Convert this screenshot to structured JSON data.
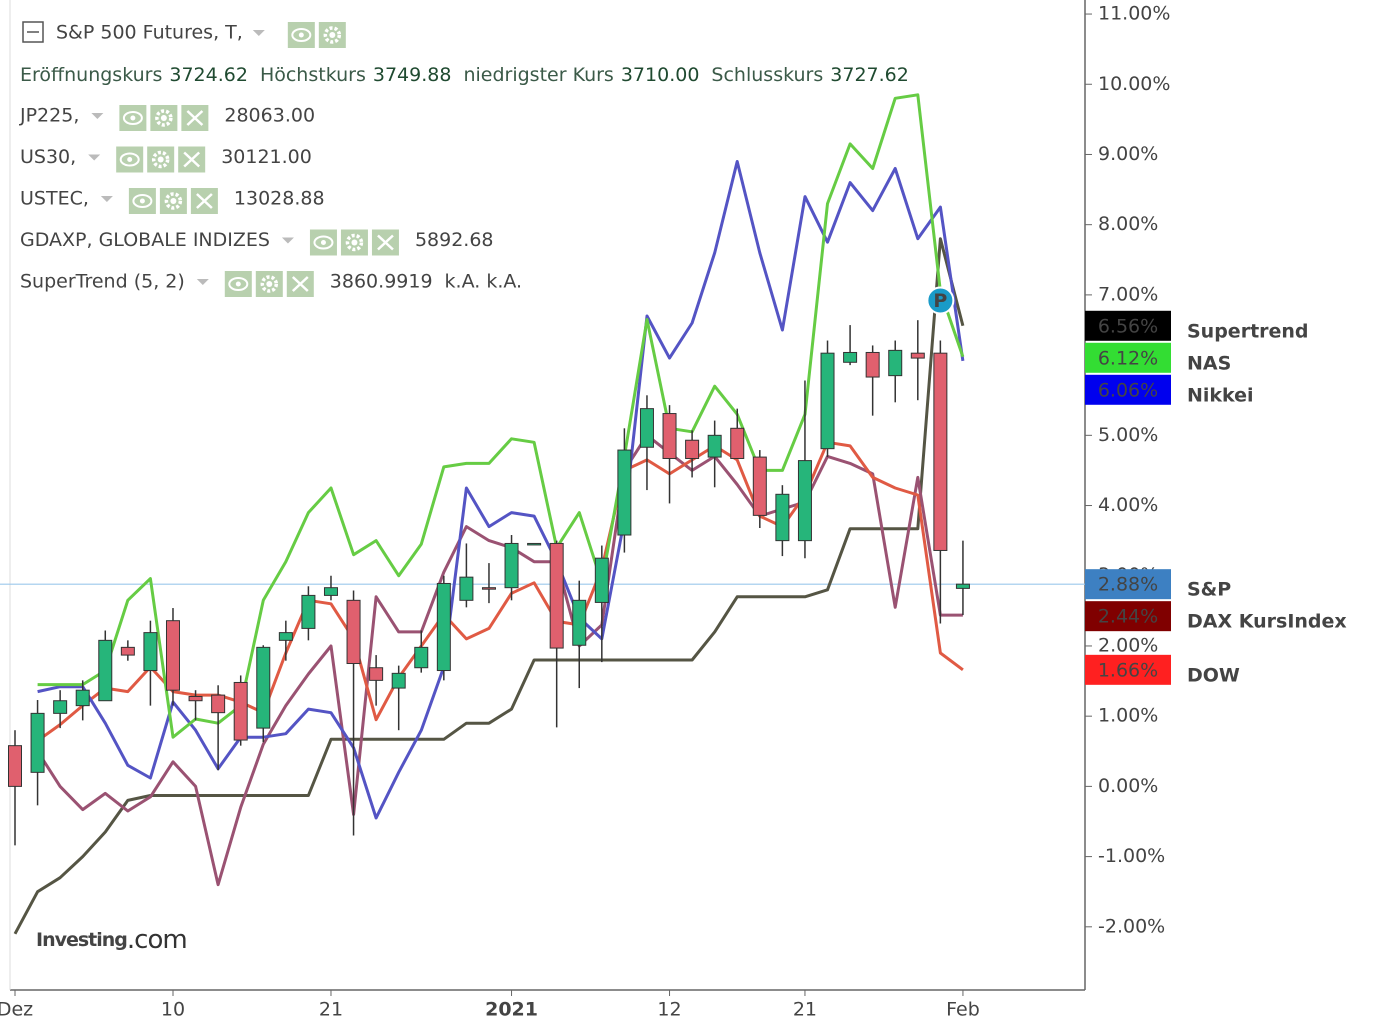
{
  "chart_data": {
    "type": "candlestick",
    "title": "S&P 500 Futures, T,",
    "header_fields": [
      {
        "label": "Eröffnungskurs",
        "value": "3724.62"
      },
      {
        "label": "Höchstkurs",
        "value": "3749.88"
      },
      {
        "label": "niedrigster Kurs",
        "value": "3710.00"
      },
      {
        "label": "Schlusskurs",
        "value": "3727.62"
      }
    ],
    "logo": "Investing",
    "logo_suffix": ".com",
    "marker": "P",
    "categories": [
      "Dez",
      null,
      null,
      null,
      null,
      null,
      null,
      "10",
      null,
      null,
      null,
      null,
      null,
      null,
      "21",
      null,
      null,
      null,
      null,
      null,
      null,
      null,
      "2021",
      null,
      null,
      null,
      null,
      null,
      null,
      "12",
      null,
      null,
      null,
      null,
      null,
      "21",
      null,
      null,
      null,
      null,
      null,
      null,
      "Feb"
    ],
    "ylim": [
      -2.9,
      11.2
    ],
    "yticks": [
      {
        "value": 11,
        "label": "11.00%"
      },
      {
        "value": 10,
        "label": "10.00%"
      },
      {
        "value": 9,
        "label": "9.00%"
      },
      {
        "value": 8,
        "label": "8.00%"
      },
      {
        "value": 7,
        "label": "7.00%"
      },
      {
        "value": 6,
        "label": "6.00%"
      },
      {
        "value": 5,
        "label": "5.00%"
      },
      {
        "value": 4,
        "label": "4.00%"
      },
      {
        "value": 3,
        "label": "3.00%"
      },
      {
        "value": 2,
        "label": "2.00%"
      },
      {
        "value": 1,
        "label": "1.00%"
      },
      {
        "value": 0,
        "label": "0.00%"
      },
      {
        "value": -1,
        "label": "-1.00%"
      },
      {
        "value": -2,
        "label": "-2.00%"
      }
    ],
    "candles": {
      "name": "S&P",
      "up_color": "#26b57a",
      "down_color": "#e0606e",
      "label_color": "#3d80c2",
      "name_color": "#33aadd",
      "price_line_color": "#9cc8ec",
      "open": [
        0.58,
        0.2,
        1.04,
        1.15,
        1.22,
        1.98,
        1.65,
        2.36,
        1.28,
        1.3,
        1.48,
        0.83,
        2.08,
        2.25,
        2.72,
        2.65,
        1.69,
        1.4,
        1.69,
        1.65,
        2.65,
        2.83,
        2.83,
        3.46,
        3.46,
        2.01,
        2.62,
        3.58,
        4.83,
        5.31,
        4.93,
        4.69,
        5.1,
        4.69,
        3.5,
        3.5,
        4.81,
        6.04,
        6.18,
        5.85,
        6.17,
        6.17,
        2.82
      ],
      "high": [
        0.8,
        1.23,
        1.37,
        1.51,
        2.22,
        2.08,
        2.36,
        2.54,
        1.37,
        1.44,
        1.58,
        2.01,
        2.36,
        2.85,
        3.0,
        2.79,
        1.87,
        1.72,
        2.22,
        3.0,
        3.46,
        3.18,
        3.58,
        3.46,
        3.5,
        2.93,
        3.43,
        5.1,
        5.57,
        5.43,
        5.07,
        5.21,
        5.38,
        4.79,
        4.29,
        5.78,
        6.35,
        6.57,
        6.28,
        6.35,
        6.64,
        6.35,
        3.5
      ],
      "low": [
        -0.84,
        -0.27,
        0.83,
        0.94,
        1.23,
        1.79,
        1.15,
        1.15,
        0.94,
        0.23,
        0.58,
        0.63,
        1.79,
        2.08,
        2.65,
        -0.7,
        1.15,
        0.8,
        1.62,
        1.51,
        2.55,
        2.61,
        2.65,
        3.46,
        0.84,
        1.4,
        1.77,
        3.33,
        4.22,
        4.03,
        4.4,
        4.26,
        4.69,
        3.68,
        3.28,
        3.25,
        4.69,
        6.0,
        5.28,
        5.47,
        5.5,
        2.32,
        2.44
      ],
      "close": [
        0.0,
        1.04,
        1.22,
        1.37,
        2.08,
        1.87,
        2.19,
        1.37,
        1.22,
        1.05,
        0.66,
        1.98,
        2.19,
        2.72,
        2.83,
        1.75,
        1.51,
        1.61,
        1.98,
        2.89,
        2.98,
        2.81,
        3.46,
        3.46,
        1.97,
        2.65,
        3.25,
        4.79,
        5.38,
        4.67,
        4.67,
        5.0,
        4.67,
        3.86,
        4.16,
        4.64,
        6.17,
        6.18,
        5.83,
        6.21,
        6.1,
        3.36,
        2.88
      ],
      "value_labels": [
        null,
        null,
        null,
        null,
        null,
        null,
        null,
        null,
        null,
        null,
        null,
        null,
        null,
        null,
        null,
        null,
        null,
        null,
        null,
        null,
        null,
        null,
        null,
        null,
        null,
        null,
        null,
        null,
        null,
        null,
        null,
        null,
        null,
        null,
        null,
        null,
        null,
        null,
        null,
        null,
        null,
        null,
        "2.88%"
      ]
    },
    "series": [
      {
        "name": "Nikkei",
        "symbol": "JP225,",
        "quote": "28063.00",
        "quote_color": "#0000cc",
        "color": "#5454c4",
        "label_color": "#0000ee",
        "name_color": "#3a4aa8",
        "values": [
          null,
          1.35,
          1.42,
          1.42,
          0.9,
          0.3,
          0.12,
          1.2,
          0.8,
          0.25,
          0.7,
          0.7,
          0.75,
          1.1,
          1.05,
          0.55,
          -0.45,
          0.2,
          0.8,
          1.7,
          4.25,
          3.7,
          3.9,
          3.85,
          3.2,
          2.4,
          2.1,
          3.8,
          6.7,
          6.1,
          6.6,
          7.6,
          8.9,
          7.6,
          6.5,
          8.4,
          7.75,
          8.6,
          8.2,
          8.8,
          7.8,
          8.25,
          6.06
        ],
        "value_labels": [
          null,
          null,
          null,
          null,
          null,
          null,
          null,
          null,
          null,
          null,
          null,
          null,
          null,
          null,
          null,
          null,
          null,
          null,
          null,
          null,
          null,
          null,
          null,
          null,
          null,
          null,
          null,
          null,
          null,
          null,
          null,
          null,
          null,
          null,
          null,
          null,
          null,
          null,
          null,
          null,
          null,
          null,
          "6.06%"
        ]
      },
      {
        "name": "DOW",
        "symbol": "US30,",
        "quote": "30121.00",
        "quote_color": "#dd0000",
        "color": "#e05a44",
        "label_color": "#ff2020",
        "name_color": "#ee1111",
        "values": [
          null,
          0.65,
          0.88,
          1.15,
          1.4,
          1.35,
          1.7,
          1.35,
          1.3,
          1.3,
          1.2,
          1.05,
          1.9,
          2.65,
          2.6,
          2.1,
          0.95,
          1.55,
          2.0,
          2.45,
          2.1,
          2.25,
          2.75,
          2.9,
          2.35,
          2.3,
          3.1,
          4.5,
          4.65,
          4.45,
          4.65,
          4.85,
          4.65,
          3.85,
          3.7,
          4.15,
          4.9,
          4.85,
          4.4,
          4.25,
          4.15,
          1.9,
          1.66
        ],
        "value_labels": [
          null,
          null,
          null,
          null,
          null,
          null,
          null,
          null,
          null,
          null,
          null,
          null,
          null,
          null,
          null,
          null,
          null,
          null,
          null,
          null,
          null,
          null,
          null,
          null,
          null,
          null,
          null,
          null,
          null,
          null,
          null,
          null,
          null,
          null,
          null,
          null,
          null,
          null,
          null,
          null,
          null,
          null,
          "1.66%"
        ]
      },
      {
        "name": "NAS",
        "symbol": "USTEC,",
        "quote": "13028.88",
        "quote_color": "#22cc22",
        "color": "#66cc44",
        "label_color": "#33dd33",
        "name_color": "#33bb33",
        "values": [
          null,
          1.45,
          1.45,
          1.45,
          1.65,
          2.65,
          2.96,
          0.7,
          0.96,
          0.9,
          1.15,
          2.65,
          3.2,
          3.9,
          4.25,
          3.3,
          3.5,
          3.0,
          3.45,
          4.55,
          4.6,
          4.6,
          4.95,
          4.9,
          3.4,
          3.9,
          2.9,
          4.7,
          6.65,
          5.1,
          5.05,
          5.7,
          5.3,
          4.5,
          4.5,
          5.3,
          8.3,
          9.15,
          8.8,
          9.8,
          9.85,
          7.05,
          6.12
        ],
        "value_labels": [
          null,
          null,
          null,
          null,
          null,
          null,
          null,
          null,
          null,
          null,
          null,
          null,
          null,
          null,
          null,
          null,
          null,
          null,
          null,
          null,
          null,
          null,
          null,
          null,
          null,
          null,
          null,
          null,
          null,
          null,
          null,
          null,
          null,
          null,
          null,
          null,
          null,
          null,
          null,
          null,
          null,
          null,
          "6.12%"
        ]
      },
      {
        "name": "DAX KursIndex",
        "symbol": "GDAXP, GLOBALE INDIZES",
        "quote": "5892.68",
        "quote_color": "#8b1a1a",
        "color": "#9a5272",
        "label_color": "#800000",
        "name_color": "#8b0000",
        "values": [
          null,
          0.5,
          0.0,
          -0.33,
          -0.1,
          -0.35,
          -0.15,
          0.35,
          0.0,
          -1.4,
          -0.3,
          0.6,
          1.15,
          1.6,
          2.0,
          -0.4,
          2.7,
          2.2,
          2.2,
          3.05,
          3.7,
          3.5,
          3.4,
          3.2,
          3.2,
          2.0,
          2.3,
          4.5,
          5.0,
          4.75,
          4.5,
          4.7,
          4.3,
          3.85,
          3.95,
          4.05,
          4.7,
          4.6,
          4.45,
          2.55,
          4.4,
          2.44,
          2.44
        ],
        "value_labels": [
          null,
          null,
          null,
          null,
          null,
          null,
          null,
          null,
          null,
          null,
          null,
          null,
          null,
          null,
          null,
          null,
          null,
          null,
          null,
          null,
          null,
          null,
          null,
          null,
          null,
          null,
          null,
          null,
          null,
          null,
          null,
          null,
          null,
          null,
          null,
          null,
          null,
          null,
          null,
          null,
          null,
          null,
          "2.44%"
        ]
      },
      {
        "name": "Supertrend",
        "symbol": "SuperTrend (5, 2)",
        "quote": "3860.9919",
        "extra": "k.A. k.A.",
        "quote_color": "#111111",
        "color": "#555544",
        "label_color": "#000000",
        "name_color": "#000000",
        "values": [
          -2.1,
          -1.5,
          -1.3,
          -1.0,
          -0.65,
          -0.2,
          -0.13,
          -0.13,
          -0.13,
          -0.13,
          -0.13,
          -0.13,
          -0.13,
          -0.13,
          0.67,
          0.67,
          0.67,
          0.67,
          0.67,
          0.67,
          0.9,
          0.9,
          1.1,
          1.8,
          1.8,
          1.8,
          1.8,
          1.8,
          1.8,
          1.8,
          1.8,
          2.2,
          2.7,
          2.7,
          2.7,
          2.7,
          2.8,
          3.67,
          3.67,
          3.67,
          3.67,
          7.8,
          6.56
        ],
        "value_labels": [
          null,
          null,
          null,
          null,
          null,
          null,
          null,
          null,
          null,
          null,
          null,
          null,
          null,
          null,
          null,
          null,
          null,
          null,
          null,
          null,
          null,
          null,
          null,
          null,
          null,
          null,
          null,
          null,
          null,
          null,
          null,
          null,
          null,
          null,
          null,
          null,
          null,
          null,
          null,
          null,
          null,
          null,
          "6.56%"
        ]
      }
    ]
  }
}
